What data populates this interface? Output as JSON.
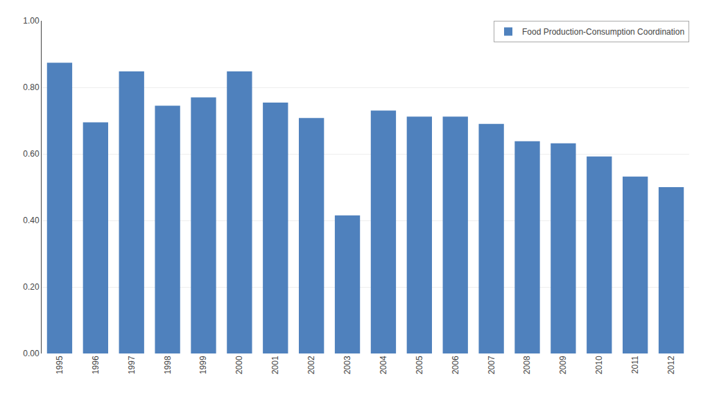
{
  "chart_data": {
    "type": "bar",
    "categories": [
      "1995",
      "1996",
      "1997",
      "1998",
      "1999",
      "2000",
      "2001",
      "2002",
      "2003",
      "2004",
      "2005",
      "2006",
      "2007",
      "2008",
      "2009",
      "2010",
      "2011",
      "2012"
    ],
    "series": [
      {
        "name": "Food Production-Consumption Coordination",
        "color": "#4F81BD",
        "values": [
          0.874,
          0.695,
          0.848,
          0.745,
          0.77,
          0.848,
          0.754,
          0.708,
          0.415,
          0.73,
          0.712,
          0.712,
          0.69,
          0.638,
          0.632,
          0.592,
          0.532,
          0.5
        ]
      }
    ],
    "ylim": [
      0.0,
      1.0
    ],
    "yticks": [
      {
        "value": 0.0,
        "label": "0.00"
      },
      {
        "value": 0.2,
        "label": "0.20"
      },
      {
        "value": 0.4,
        "label": "0.40"
      },
      {
        "value": 0.6,
        "label": "0.60"
      },
      {
        "value": 0.8,
        "label": "0.80"
      },
      {
        "value": 1.0,
        "label": "1.00"
      }
    ],
    "grid": true,
    "legend": "upper right"
  }
}
